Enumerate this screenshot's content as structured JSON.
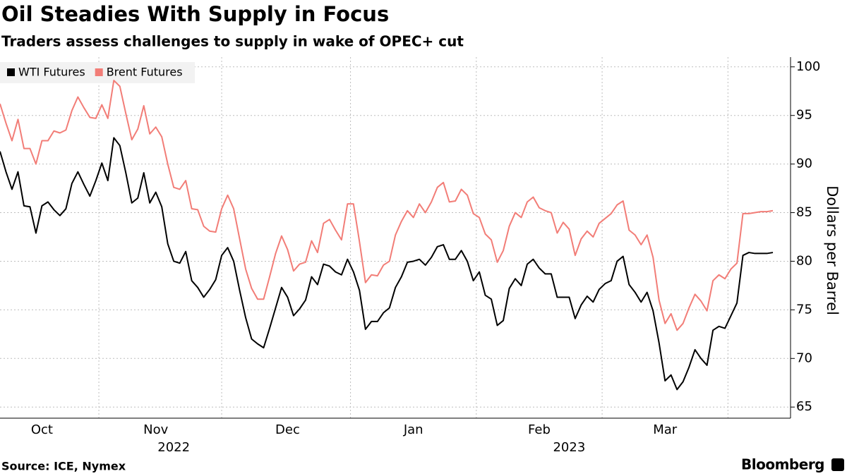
{
  "chart_data": {
    "type": "line",
    "title": "Oil Steadies With Supply in Focus",
    "subtitle": "Traders assess challenges to supply in wake of OPEC+ cut",
    "ylabel": "Dollars per Barrel",
    "source": "Source: ICE, Nymex",
    "brand": "Bloomberg",
    "categories": [
      null,
      null,
      null,
      null,
      null,
      null,
      null,
      "Oct",
      null,
      null,
      null,
      null,
      null,
      null,
      null,
      null,
      null,
      null,
      null,
      null,
      null,
      null,
      null,
      null,
      null,
      null,
      "Nov",
      null,
      null,
      null,
      null,
      null,
      null,
      null,
      null,
      null,
      null,
      null,
      null,
      null,
      null,
      null,
      null,
      null,
      null,
      null,
      null,
      null,
      "Dec",
      null,
      null,
      null,
      null,
      null,
      null,
      null,
      null,
      null,
      null,
      null,
      null,
      null,
      null,
      null,
      null,
      null,
      null,
      null,
      null,
      "Jan",
      null,
      null,
      null,
      null,
      null,
      null,
      null,
      null,
      null,
      null,
      null,
      null,
      null,
      null,
      null,
      null,
      null,
      null,
      null,
      null,
      "Feb",
      null,
      null,
      null,
      null,
      null,
      null,
      null,
      null,
      null,
      null,
      null,
      null,
      null,
      null,
      null,
      null,
      null,
      null,
      null,
      null,
      "Mar",
      null,
      null,
      null,
      null,
      null,
      null,
      null,
      null,
      null,
      null,
      null,
      null,
      null,
      null,
      null,
      null,
      null,
      null
    ],
    "x_years": [
      null,
      null,
      null,
      null,
      null,
      null,
      null,
      null,
      null,
      null,
      null,
      null,
      null,
      null,
      null,
      null,
      null,
      null,
      null,
      null,
      null,
      null,
      null,
      null,
      null,
      null,
      null,
      null,
      null,
      "2022",
      null,
      null,
      null,
      null,
      null,
      null,
      null,
      null,
      null,
      null,
      null,
      null,
      null,
      null,
      null,
      null,
      null,
      null,
      null,
      null,
      null,
      null,
      null,
      null,
      null,
      null,
      null,
      null,
      null,
      null,
      null,
      null,
      null,
      null,
      null,
      null,
      null,
      null,
      null,
      null,
      null,
      null,
      null,
      null,
      null,
      null,
      null,
      null,
      null,
      null,
      null,
      null,
      null,
      null,
      null,
      null,
      null,
      null,
      null,
      null,
      null,
      null,
      null,
      null,
      null,
      "2023",
      null,
      null,
      null,
      null,
      null,
      null,
      null,
      null,
      null,
      null,
      null,
      null,
      null,
      null,
      null,
      null,
      null,
      null,
      null,
      null,
      null,
      null,
      null,
      null,
      null,
      null,
      null,
      null,
      null,
      null,
      null,
      null,
      null
    ],
    "series": [
      {
        "name": "WTI Futures",
        "color": "#000000",
        "values": [
          91.3,
          89.2,
          87.4,
          89.2,
          85.7,
          85.6,
          82.9,
          85.7,
          86.1,
          85.3,
          84.7,
          85.4,
          88.0,
          89.2,
          87.9,
          86.7,
          88.3,
          90.1,
          88.3,
          92.7,
          91.9,
          89.1,
          86.0,
          86.5,
          89.1,
          86.0,
          87.1,
          85.6,
          81.8,
          80.0,
          79.8,
          81.0,
          78.0,
          77.3,
          76.3,
          77.1,
          78.1,
          80.6,
          81.4,
          80.0,
          77.0,
          74.2,
          72.0,
          71.5,
          71.1,
          73.1,
          75.2,
          77.3,
          76.3,
          74.4,
          75.1,
          76.0,
          78.4,
          77.6,
          79.7,
          79.5,
          78.9,
          78.6,
          80.2,
          78.9,
          77.0,
          73.0,
          73.8,
          73.8,
          74.7,
          75.2,
          77.3,
          78.4,
          79.9,
          80.0,
          80.2,
          79.6,
          80.4,
          81.5,
          81.7,
          80.2,
          80.2,
          81.1,
          80.0,
          78.0,
          78.9,
          76.5,
          76.1,
          73.4,
          73.9,
          77.2,
          78.2,
          77.5,
          79.7,
          80.2,
          79.3,
          78.7,
          78.7,
          76.3,
          76.3,
          76.3,
          74.1,
          75.5,
          76.4,
          75.8,
          77.1,
          77.7,
          78.0,
          80.0,
          80.5,
          77.6,
          76.8,
          75.8,
          76.8,
          74.9,
          71.6,
          67.7,
          68.3,
          66.8,
          67.6,
          69.1,
          70.9,
          70.0,
          69.3,
          72.9,
          73.3,
          73.1,
          74.4,
          75.7,
          80.6,
          80.9,
          80.8,
          80.8,
          80.8,
          80.9
        ]
      },
      {
        "name": "Brent Futures",
        "color": "#f27d77",
        "values": [
          96.2,
          94.2,
          92.4,
          94.6,
          91.6,
          91.6,
          90.0,
          92.4,
          92.4,
          93.4,
          93.2,
          93.5,
          95.5,
          96.9,
          95.8,
          94.8,
          94.7,
          96.1,
          94.7,
          98.6,
          98.0,
          95.2,
          92.5,
          93.6,
          96.0,
          93.1,
          93.8,
          92.8,
          90.0,
          87.6,
          87.4,
          88.3,
          85.4,
          85.3,
          83.6,
          83.1,
          83.0,
          85.4,
          86.8,
          85.4,
          82.3,
          79.2,
          77.2,
          76.1,
          76.1,
          78.4,
          80.8,
          82.6,
          81.2,
          79.0,
          79.7,
          79.9,
          82.1,
          80.9,
          83.9,
          84.3,
          83.2,
          82.2,
          85.9,
          85.9,
          82.0,
          77.8,
          78.6,
          78.5,
          79.6,
          80.0,
          82.7,
          84.1,
          85.2,
          84.5,
          85.9,
          85.0,
          86.1,
          87.6,
          88.1,
          86.1,
          86.2,
          87.4,
          86.8,
          84.9,
          84.5,
          82.8,
          82.2,
          79.9,
          81.1,
          83.6,
          85.0,
          84.5,
          86.1,
          86.6,
          85.5,
          85.2,
          85.0,
          82.9,
          84.0,
          83.3,
          80.6,
          82.3,
          83.1,
          82.5,
          83.9,
          84.4,
          84.9,
          85.8,
          86.2,
          83.2,
          82.7,
          81.7,
          82.7,
          80.4,
          76.0,
          73.6,
          74.6,
          72.9,
          73.6,
          75.2,
          76.6,
          75.9,
          74.9,
          78.0,
          78.6,
          78.2,
          79.2,
          79.8,
          84.9,
          84.9,
          85.0,
          85.1,
          85.1,
          85.2
        ]
      }
    ],
    "ylim": [
      64,
      101
    ],
    "yticks": [
      65,
      70,
      75,
      80,
      85,
      90,
      95,
      100
    ],
    "grid": true,
    "legend": "top-left"
  }
}
